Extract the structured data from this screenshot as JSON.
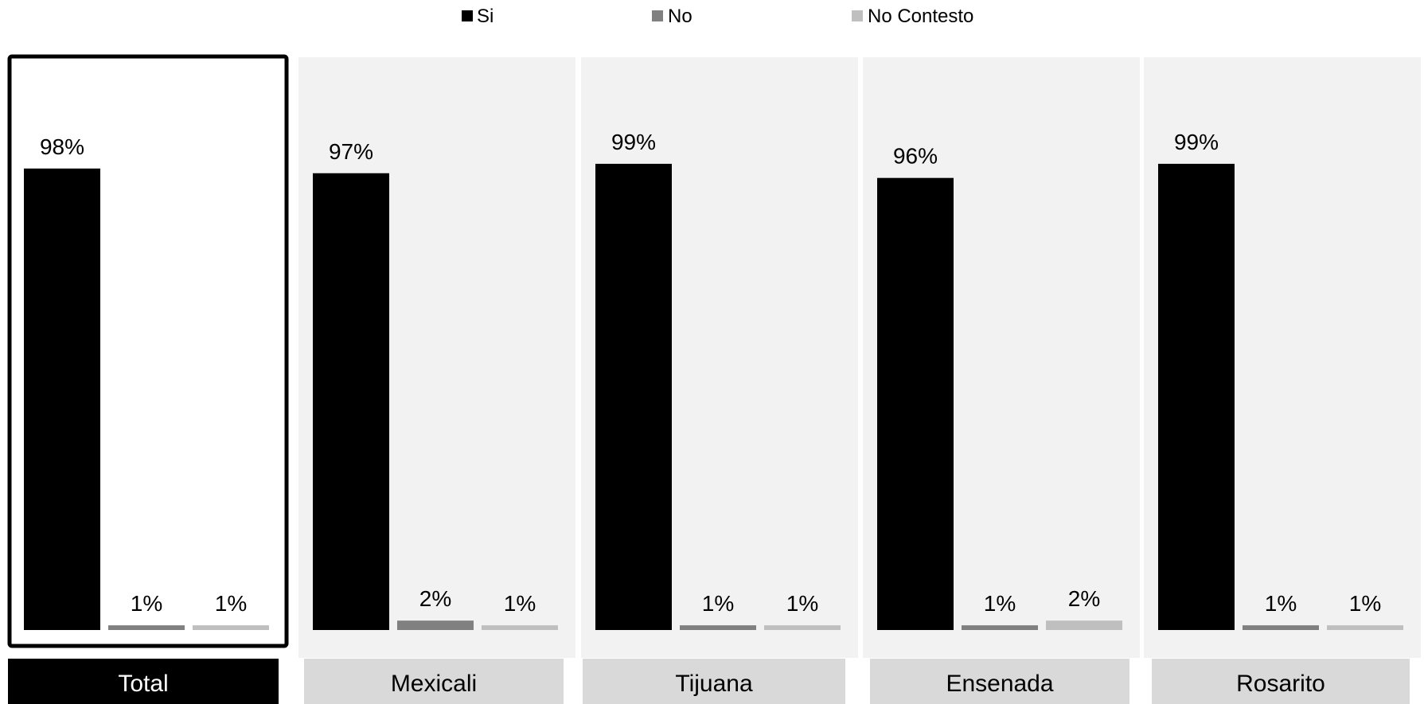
{
  "chart_data": {
    "type": "bar",
    "categories": [
      "Total",
      "Mexicali",
      "Tijuana",
      "Ensenada",
      "Rosarito"
    ],
    "series": [
      {
        "name": "Si",
        "values": [
          98,
          97,
          99,
          96,
          99
        ]
      },
      {
        "name": "No",
        "values": [
          1,
          2,
          1,
          1,
          1
        ]
      },
      {
        "name": "No Contesto",
        "values": [
          1,
          1,
          1,
          2,
          1
        ]
      }
    ],
    "value_labels": [
      [
        "98%",
        "1%",
        "1%"
      ],
      [
        "97%",
        "2%",
        "1%"
      ],
      [
        "99%",
        "1%",
        "1%"
      ],
      [
        "96%",
        "1%",
        "2%"
      ],
      [
        "99%",
        "1%",
        "1%"
      ]
    ],
    "unit": "%",
    "ylim": [
      0,
      100
    ],
    "grid": false,
    "legend_position": "top-center",
    "highlighted_category": "Total",
    "colors": {
      "series": [
        "#000000",
        "#808080",
        "#bfbfbf"
      ],
      "panel_background": "#f2f2f2",
      "highlight_panel_background": "#ffffff",
      "highlight_panel_border": "#000000",
      "category_label_background": "#d9d9d9",
      "highlight_category_label_background": "#000000",
      "category_label_text": "#000000",
      "highlight_category_label_text": "#ffffff"
    }
  }
}
